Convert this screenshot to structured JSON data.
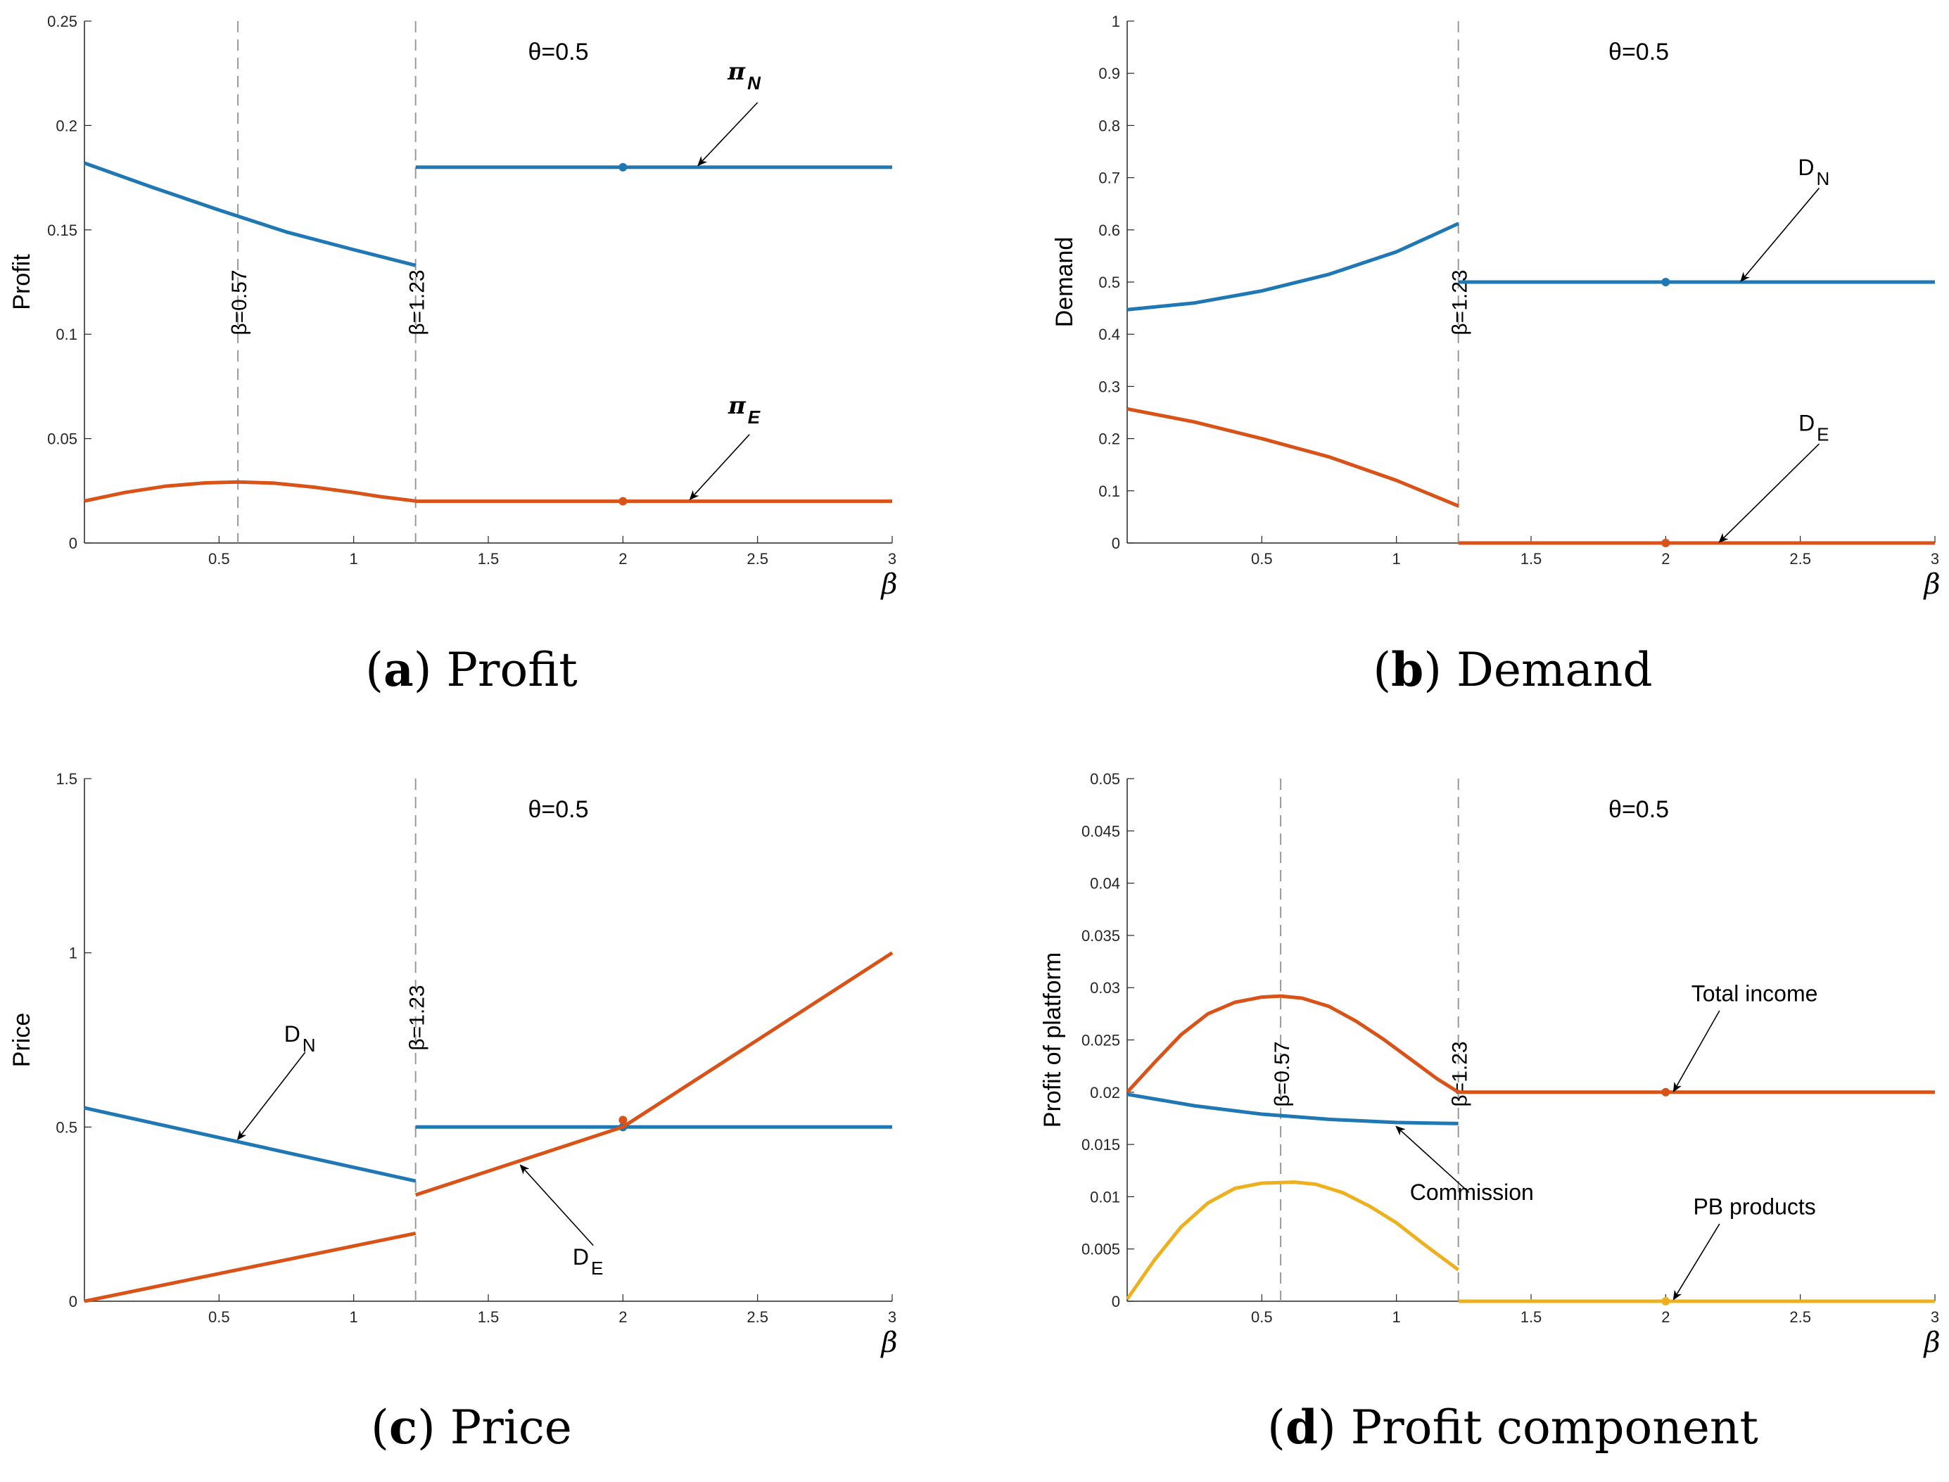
{
  "colors": {
    "blue": "#1f77b4",
    "orange": "#d95319",
    "yellow": "#edb120",
    "gray": "#999999",
    "axis": "#262626"
  },
  "chart_data": [
    {
      "id": "a",
      "type": "line",
      "caption_letter": "a",
      "caption_text": "Profit",
      "xlabel": "β",
      "ylabel": "Profit",
      "xlim": [
        0,
        3
      ],
      "ylim": [
        0,
        0.25
      ],
      "xticks": [
        "0.5",
        "1",
        "1.5",
        "2",
        "2.5",
        "3"
      ],
      "yticks": [
        "0",
        "0.05",
        "0.1",
        "0.15",
        "0.2",
        "0.25"
      ],
      "theta_label": "θ=0.5",
      "vlines": [
        {
          "x": 0.57,
          "label": "β=0.57"
        },
        {
          "x": 1.23,
          "label": "β=1.23"
        }
      ],
      "series": [
        {
          "name": "π_N",
          "color": "orange_blue:blue",
          "segments": [
            {
              "x": [
                0,
                0.25,
                0.5,
                0.75,
                1.0,
                1.23
              ],
              "y": [
                0.182,
                0.1705,
                0.1595,
                0.149,
                0.1405,
                0.133
              ]
            },
            {
              "x": [
                1.23,
                3
              ],
              "y": [
                0.18,
                0.18
              ]
            }
          ],
          "marker": {
            "x": 2,
            "y": 0.18
          }
        },
        {
          "name": "π_E",
          "color": "orange",
          "segments": [
            {
              "x": [
                0,
                0.15,
                0.3,
                0.45,
                0.57,
                0.7,
                0.85,
                1.0,
                1.1,
                1.23
              ],
              "y": [
                0.0201,
                0.0242,
                0.0272,
                0.0288,
                0.0292,
                0.0287,
                0.0268,
                0.0242,
                0.0222,
                0.0201
              ]
            },
            {
              "x": [
                1.23,
                3
              ],
              "y": [
                0.02,
                0.02
              ]
            }
          ],
          "marker": {
            "x": 2,
            "y": 0.02
          }
        }
      ],
      "labels": [
        {
          "text": "π",
          "sub": "N",
          "bold": true,
          "pos": [
            2.45,
            0.222
          ],
          "arrow_from": [
            2.5,
            0.211
          ],
          "arrow_to": [
            2.28,
            0.181
          ]
        },
        {
          "text": "π",
          "sub": "E",
          "bold": true,
          "pos": [
            2.45,
            0.062
          ],
          "arrow_from": [
            2.47,
            0.052
          ],
          "arrow_to": [
            2.25,
            0.021
          ]
        }
      ]
    },
    {
      "id": "b",
      "type": "line",
      "caption_letter": "b",
      "caption_text": "Demand",
      "xlabel": "β",
      "ylabel": "Demand",
      "xlim": [
        0,
        3
      ],
      "ylim": [
        0,
        1
      ],
      "xticks": [
        "0.5",
        "1",
        "1.5",
        "2",
        "2.5",
        "3"
      ],
      "yticks": [
        "0",
        "0.1",
        "0.2",
        "0.3",
        "0.4",
        "0.5",
        "0.6",
        "0.7",
        "0.8",
        "0.9",
        "1"
      ],
      "theta_label": "θ=0.5",
      "vlines": [
        {
          "x": 1.23,
          "label": "β=1.23"
        }
      ],
      "series": [
        {
          "name": "D_N",
          "color": "blue",
          "segments": [
            {
              "x": [
                0,
                0.25,
                0.5,
                0.75,
                1.0,
                1.23
              ],
              "y": [
                0.447,
                0.46,
                0.483,
                0.515,
                0.558,
                0.612
              ]
            },
            {
              "x": [
                1.23,
                3
              ],
              "y": [
                0.5,
                0.5
              ]
            }
          ],
          "marker": {
            "x": 2,
            "y": 0.5
          }
        },
        {
          "name": "D_E",
          "color": "orange",
          "segments": [
            {
              "x": [
                0,
                0.25,
                0.5,
                0.75,
                1.0,
                1.23
              ],
              "y": [
                0.257,
                0.232,
                0.2,
                0.165,
                0.12,
                0.071
              ]
            },
            {
              "x": [
                1.23,
                3
              ],
              "y": [
                0,
                0
              ]
            }
          ],
          "marker": {
            "x": 2,
            "y": 0
          }
        }
      ],
      "labels": [
        {
          "text": "D",
          "sub": "N",
          "bold": false,
          "pos": [
            2.55,
            0.705
          ],
          "arrow_from": [
            2.57,
            0.68
          ],
          "arrow_to": [
            2.28,
            0.502
          ]
        },
        {
          "text": "D",
          "sub": "E",
          "bold": false,
          "pos": [
            2.55,
            0.215
          ],
          "arrow_from": [
            2.57,
            0.19
          ],
          "arrow_to": [
            2.2,
            0.002
          ]
        }
      ]
    },
    {
      "id": "c",
      "type": "line",
      "caption_letter": "c",
      "caption_text": "Price",
      "xlabel": "β",
      "ylabel": "Price",
      "xlim": [
        0,
        3
      ],
      "ylim": [
        0,
        1.5
      ],
      "xticks": [
        "0.5",
        "1",
        "1.5",
        "2",
        "2.5",
        "3"
      ],
      "yticks": [
        "0",
        "0.5",
        "1",
        "1.5"
      ],
      "theta_label": "θ=0.5",
      "vlines": [
        {
          "x": 1.23,
          "label": "β=1.23"
        }
      ],
      "series": [
        {
          "name": "D_N",
          "color": "blue",
          "segments": [
            {
              "x": [
                0,
                1.23
              ],
              "y": [
                0.555,
                0.345
              ]
            },
            {
              "x": [
                1.23,
                3
              ],
              "y": [
                0.5,
                0.5
              ]
            }
          ],
          "marker": {
            "x": 2,
            "y": 0.5
          }
        },
        {
          "name": "D_E",
          "color": "orange",
          "segments": [
            {
              "x": [
                0,
                1.23
              ],
              "y": [
                0,
                0.195
              ]
            },
            {
              "x": [
                1.23,
                2,
                3
              ],
              "y": [
                0.305,
                0.5,
                1.0
              ]
            }
          ],
          "marker": {
            "x": 2,
            "y": 0.52
          }
        }
      ],
      "labels": [
        {
          "text": "D",
          "sub": "N",
          "bold": false,
          "pos": [
            0.8,
            0.745
          ],
          "arrow_from": [
            0.82,
            0.715
          ],
          "arrow_to": [
            0.57,
            0.465
          ]
        },
        {
          "text": "D",
          "sub": "E",
          "bold": false,
          "pos": [
            1.87,
            0.105
          ],
          "arrow_from": [
            1.89,
            0.16
          ],
          "arrow_to": [
            1.62,
            0.39
          ]
        }
      ]
    },
    {
      "id": "d",
      "type": "line",
      "caption_letter": "d",
      "caption_text": "Profit component",
      "xlabel": "β",
      "ylabel": "Profit of platform",
      "xlim": [
        0,
        3
      ],
      "ylim": [
        0,
        0.05
      ],
      "xticks": [
        "0.5",
        "1",
        "1.5",
        "2",
        "2.5",
        "3"
      ],
      "yticks": [
        "0",
        "0.005",
        "0.01",
        "0.015",
        "0.02",
        "0.025",
        "0.03",
        "0.035",
        "0.04",
        "0.045",
        "0.05"
      ],
      "theta_label": "θ=0.5",
      "vlines": [
        {
          "x": 0.57,
          "label": "β=0.57"
        },
        {
          "x": 1.23,
          "label": "β=1.23"
        }
      ],
      "series": [
        {
          "name": "Total income",
          "color": "orange",
          "segments": [
            {
              "x": [
                0,
                0.1,
                0.2,
                0.3,
                0.4,
                0.5,
                0.57,
                0.65,
                0.75,
                0.85,
                0.95,
                1.05,
                1.15,
                1.23
              ],
              "y": [
                0.02,
                0.0228,
                0.0255,
                0.0275,
                0.0286,
                0.0291,
                0.0292,
                0.029,
                0.0282,
                0.0268,
                0.0251,
                0.0232,
                0.0213,
                0.02
              ]
            },
            {
              "x": [
                1.23,
                3
              ],
              "y": [
                0.02,
                0.02
              ]
            }
          ],
          "marker": {
            "x": 2,
            "y": 0.02
          }
        },
        {
          "name": "Commission",
          "color": "blue",
          "segments": [
            {
              "x": [
                0,
                0.25,
                0.5,
                0.75,
                1.0,
                1.23
              ],
              "y": [
                0.0198,
                0.0187,
                0.0179,
                0.0174,
                0.0171,
                0.017
              ]
            }
          ]
        },
        {
          "name": "PB products",
          "color": "yellow",
          "segments": [
            {
              "x": [
                0,
                0.1,
                0.2,
                0.3,
                0.4,
                0.5,
                0.62,
                0.7,
                0.8,
                0.9,
                1.0,
                1.1,
                1.23
              ],
              "y": [
                0.0002,
                0.0039,
                0.0071,
                0.0094,
                0.0108,
                0.0113,
                0.0114,
                0.0112,
                0.0104,
                0.0091,
                0.0075,
                0.0055,
                0.003
              ]
            },
            {
              "x": [
                1.23,
                3
              ],
              "y": [
                0,
                0
              ]
            }
          ],
          "marker": {
            "x": 2,
            "y": 0
          }
        }
      ],
      "labels": [
        {
          "text": "Total income",
          "sub": "",
          "bold": false,
          "pos": [
            2.33,
            0.0287
          ],
          "arrow_from": [
            2.2,
            0.0278
          ],
          "arrow_to": [
            2.03,
            0.0201
          ]
        },
        {
          "text": "Commission",
          "sub": "",
          "bold": false,
          "pos": [
            1.28,
            0.0097
          ],
          "arrow_from": [
            1.27,
            0.0104
          ],
          "arrow_to": [
            1.0,
            0.0167
          ]
        },
        {
          "text": "PB products",
          "sub": "",
          "bold": false,
          "pos": [
            2.33,
            0.0083
          ],
          "arrow_from": [
            2.2,
            0.0074
          ],
          "arrow_to": [
            2.03,
            0.0002
          ]
        }
      ]
    }
  ]
}
